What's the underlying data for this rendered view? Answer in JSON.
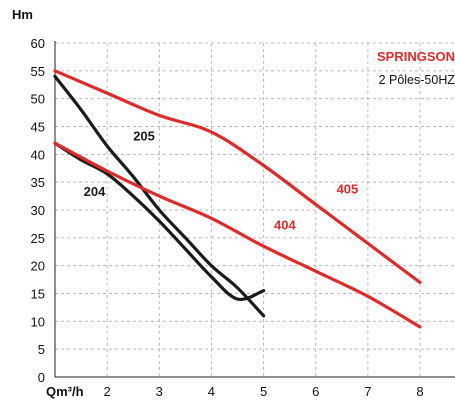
{
  "colors": {
    "red": "#e02a2a",
    "black": "#1b1b1b",
    "grid": "#b8b8b8"
  },
  "chart_data": {
    "type": "line",
    "ylabel": "Hm",
    "xlabel": "Qm³/h",
    "ylim": [
      0,
      60
    ],
    "xlim": [
      1,
      8.8
    ],
    "y_ticks": [
      0,
      5,
      10,
      15,
      20,
      25,
      30,
      35,
      40,
      45,
      50,
      55,
      60
    ],
    "x_ticks": [
      2,
      3,
      4,
      5,
      6,
      7,
      8
    ],
    "grid": true,
    "brand": "SPRINGSON",
    "subtitle": "2 Pôles-50HZ",
    "series": [
      {
        "name": "205",
        "color": "black",
        "x": [
          1,
          1.5,
          2,
          2.5,
          3,
          3.5,
          4,
          4.5,
          5
        ],
        "y": [
          54,
          48,
          41.5,
          36,
          30,
          25,
          20,
          16,
          11
        ],
        "label_x": 2.5,
        "label_y": 42.5
      },
      {
        "name": "204",
        "color": "black",
        "x": [
          1,
          1.5,
          2,
          2.5,
          3,
          3.5,
          4,
          4.5,
          5
        ],
        "y": [
          42,
          39,
          36.5,
          32.5,
          28,
          23,
          18,
          14,
          15.5
        ],
        "label_x": 1.55,
        "label_y": 32.5
      },
      {
        "name": "405",
        "color": "red",
        "x": [
          1,
          2,
          3,
          4,
          5,
          6,
          7,
          8
        ],
        "y": [
          55,
          51,
          47,
          44,
          38,
          31,
          24,
          17
        ],
        "label_x": 6.4,
        "label_y": 33
      },
      {
        "name": "404",
        "color": "red",
        "x": [
          1,
          2,
          3,
          4,
          5,
          6,
          7,
          8
        ],
        "y": [
          42,
          37,
          32.5,
          28.5,
          23.5,
          19,
          14.5,
          9
        ],
        "label_x": 5.2,
        "label_y": 26.5
      }
    ]
  }
}
